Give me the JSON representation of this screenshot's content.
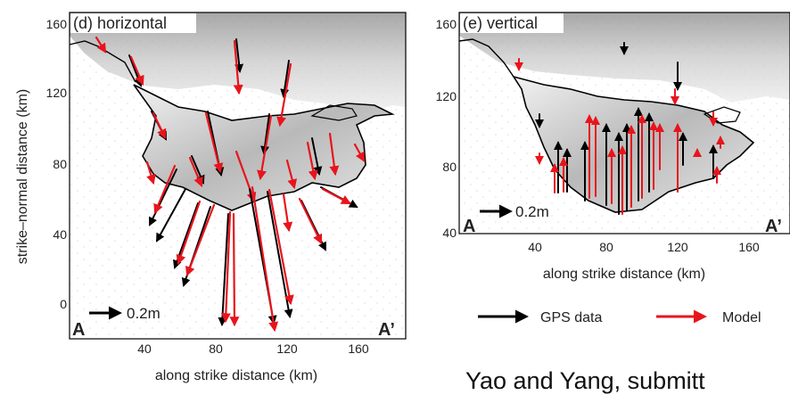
{
  "panel_d": {
    "title": "(d) horizontal",
    "xlabel": "along strike distance (km)",
    "ylabel": "strike–normal distance (km)",
    "xticks": [
      "40",
      "80",
      "120",
      "160"
    ],
    "yticks": [
      "160",
      "120",
      "80",
      "40",
      "0"
    ],
    "scale_label": "0.2m",
    "point_a": "A",
    "point_a_prime": "A’"
  },
  "panel_e": {
    "title": "(e) vertical",
    "xlabel": "along strike distance (km)",
    "xticks": [
      "40",
      "80",
      "120",
      "160"
    ],
    "yticks": [
      "160",
      "120",
      "80",
      "40"
    ],
    "scale_label": "0.2m",
    "point_a": "A",
    "point_a_prime": "A’"
  },
  "legend": {
    "gps_label": "GPS data",
    "model_label": "Model",
    "gps_color": "#000000",
    "model_color": "#e8141c"
  },
  "footer_text": "Yao and Yang, submitt"
}
